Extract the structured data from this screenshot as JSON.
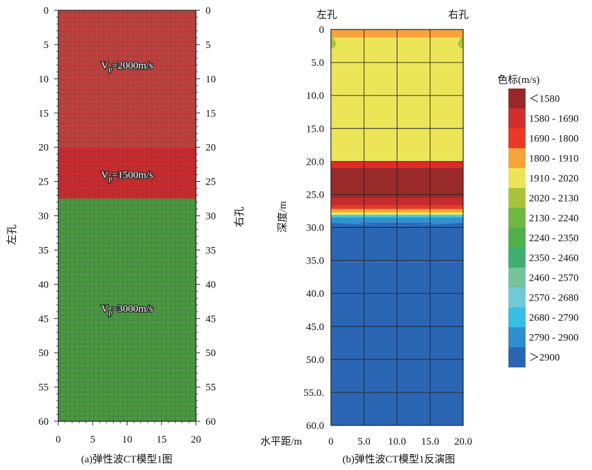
{
  "chart_data": [
    {
      "type": "heatmap",
      "caption": "(a)弹性波CT模型1图",
      "left_axis_label": "左孔",
      "right_axis_label": "右孔",
      "x_ticks": [
        "0",
        "5",
        "10",
        "15",
        "20"
      ],
      "y_ticks": [
        "0",
        "5",
        "10",
        "15",
        "20",
        "25",
        "30",
        "35",
        "40",
        "45",
        "50",
        "55",
        "60"
      ],
      "xlim": [
        0,
        20
      ],
      "ylim": [
        0,
        60
      ],
      "layers": [
        {
          "from": 0,
          "to": 20,
          "color": "#c0403e",
          "label": "V",
          "label_sub": "p",
          "label_rest": "=2000m/s",
          "label_depth": 8
        },
        {
          "from": 20,
          "to": 27.5,
          "color": "#cb2a2f",
          "label": "V",
          "label_sub": "p",
          "label_rest": "=1500m/s",
          "label_depth": 24
        },
        {
          "from": 27.5,
          "to": 60,
          "color": "#4b9842",
          "label": "V",
          "label_sub": "p",
          "label_rest": "=3000m/s",
          "label_depth": 43.5
        }
      ]
    },
    {
      "type": "heatmap",
      "caption": "(b)弹性波CT模型1反演图",
      "top_left_label": "左孔",
      "top_right_label": "右孔",
      "ylabel": "深度/m",
      "xlabel": "水平距/m",
      "x_ticks": [
        "0",
        "5.0",
        "10.0",
        "15.0",
        "20.0"
      ],
      "y_ticks": [
        "0",
        "5.0",
        "10.0",
        "15.0",
        "20.0",
        "25.0",
        "30.0",
        "35.0",
        "40.0",
        "45.0",
        "50.0",
        "55.0.",
        "60.0"
      ],
      "xlim": [
        0,
        20
      ],
      "ylim": [
        0,
        60
      ],
      "bands": [
        {
          "from": 0,
          "to": 1.2,
          "color": "#f7a33a"
        },
        {
          "from": 1.2,
          "to": 20,
          "color": "#ebe557"
        },
        {
          "from": 20,
          "to": 21,
          "color": "#e02a26"
        },
        {
          "from": 21,
          "to": 25.5,
          "color": "#9a2a2a"
        },
        {
          "from": 25.5,
          "to": 26.6,
          "color": "#c42a2e"
        },
        {
          "from": 26.6,
          "to": 27.2,
          "color": "#e53a2a"
        },
        {
          "from": 27.2,
          "to": 27.7,
          "color": "#f7a33a"
        },
        {
          "from": 27.7,
          "to": 28.1,
          "color": "#ebe557"
        },
        {
          "from": 28.1,
          "to": 28.5,
          "color": "#45c2df"
        },
        {
          "from": 28.5,
          "to": 29.3,
          "color": "#2f93d2"
        },
        {
          "from": 29.3,
          "to": 60,
          "color": "#2b66b5"
        }
      ],
      "colorbar": {
        "title": "色标(m/s)",
        "entries": [
          {
            "label": "＜1580",
            "color": "#982828"
          },
          {
            "label": "1580 - 1690",
            "color": "#d12e2e"
          },
          {
            "label": "1690 - 1800",
            "color": "#ea3a25"
          },
          {
            "label": "1800 - 1910",
            "color": "#f7a33a"
          },
          {
            "label": "1910 - 2020",
            "color": "#ebe557"
          },
          {
            "label": "2020 - 2130",
            "color": "#a9c43a"
          },
          {
            "label": "2130 - 2240",
            "color": "#6fb942"
          },
          {
            "label": "2240 - 2350",
            "color": "#4fb149"
          },
          {
            "label": "2350 - 2460",
            "color": "#3eaf6e"
          },
          {
            "label": "2460 - 2570",
            "color": "#73c39b"
          },
          {
            "label": "2570 - 2680",
            "color": "#6fc9d9"
          },
          {
            "label": "2680 - 2790",
            "color": "#38bde5"
          },
          {
            "label": "2790 - 2900",
            "color": "#2d8fcf"
          },
          {
            "label": "＞2900",
            "color": "#2b66b5"
          }
        ]
      }
    }
  ]
}
